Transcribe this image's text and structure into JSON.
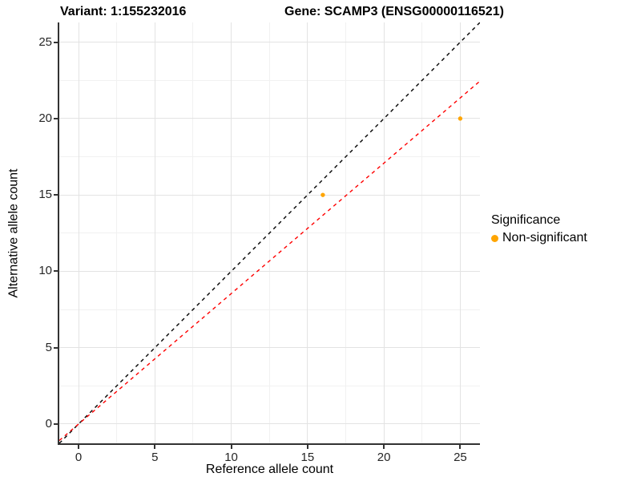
{
  "header": {
    "variant_title": "Variant: 1:155232016",
    "gene_title": "Gene: SCAMP3 (ENSG00000116521)"
  },
  "chart_data": {
    "type": "scatter",
    "title_left": "Variant: 1:155232016",
    "title_right": "Gene: SCAMP3 (ENSG00000116521)",
    "xlabel": "Reference allele count",
    "ylabel": "Alternative allele count",
    "xlim": [
      -1.26,
      26.29
    ],
    "ylim": [
      -1.26,
      26.29
    ],
    "x_ticks": [
      0,
      5,
      10,
      15,
      20,
      25
    ],
    "y_ticks": [
      0,
      5,
      10,
      15,
      20,
      25
    ],
    "grid": true,
    "minor_grid": true,
    "series": [
      {
        "name": "Non-significant",
        "color": "#FFA500",
        "points": [
          {
            "x": 16,
            "y": 15
          },
          {
            "x": 25,
            "y": 20
          }
        ]
      }
    ],
    "reference_lines": [
      {
        "name": "identity-line",
        "slope": 1.0,
        "intercept": 0,
        "color": "#000000",
        "style": "dashed"
      },
      {
        "name": "expected-ratio-line",
        "slope": 0.854,
        "intercept": 0,
        "color": "#FF0000",
        "style": "dashed"
      }
    ],
    "legend": {
      "title": "Significance",
      "position": "right",
      "items": [
        {
          "label": "Non-significant",
          "color": "#FFA500"
        }
      ]
    }
  },
  "colors": {
    "point": "#FFA500",
    "identity_line": "#000000",
    "ratio_line": "#FF0000",
    "grid_major": "#e3e3e3",
    "grid_minor": "#f1f1f1",
    "axis_line": "#333333",
    "tick_text": "#262626",
    "background": "#ffffff"
  }
}
